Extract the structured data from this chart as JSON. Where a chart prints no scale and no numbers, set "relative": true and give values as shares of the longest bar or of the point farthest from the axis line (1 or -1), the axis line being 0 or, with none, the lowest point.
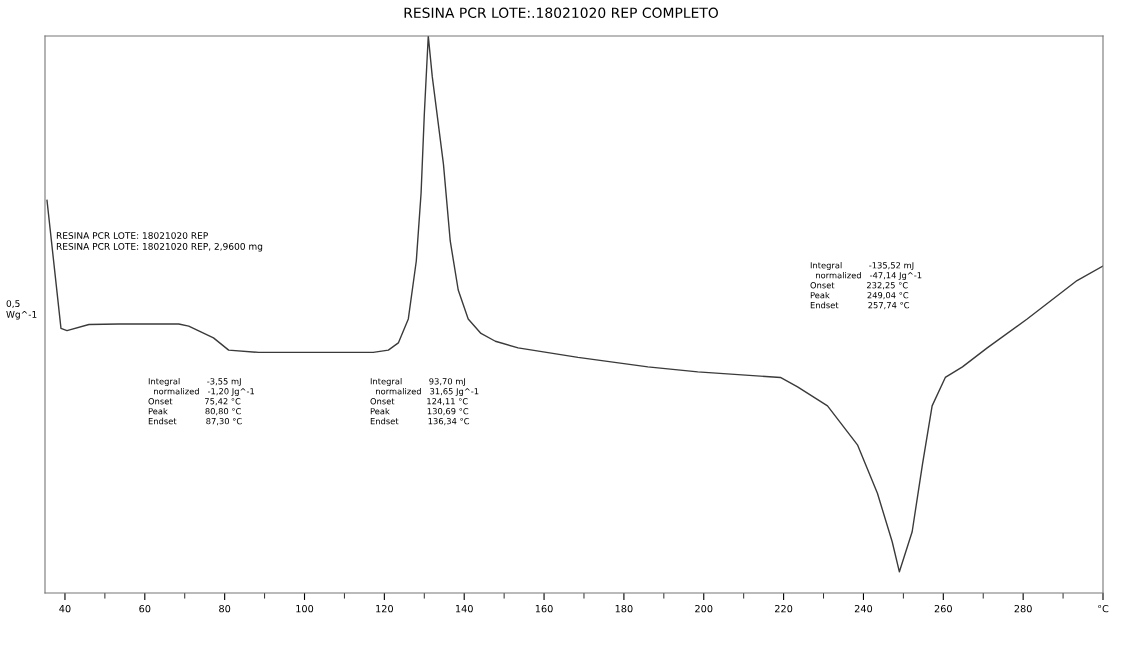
{
  "chart_data": {
    "type": "line",
    "title": "RESINA PCR LOTE:.18021020 REP COMPLETO",
    "relative": true,
    "grid": false,
    "legend": false,
    "x": [
      35.5,
      39,
      40.5,
      46,
      53.5,
      68.5,
      71,
      77.2,
      81,
      88.5,
      98.5,
      117.2,
      121,
      123.5,
      126,
      128,
      129.2,
      130,
      130.6,
      131,
      132,
      134.8,
      136.5,
      138.5,
      141,
      144.2,
      147.8,
      153.5,
      168.5,
      186,
      198.5,
      219.2,
      223.5,
      231,
      238.5,
      243.5,
      247.2,
      249,
      252.2,
      254.8,
      257.2,
      260.5,
      264.8,
      271,
      281,
      293.5,
      300
    ],
    "series": [
      {
        "color": "#3a3a3a",
        "values": [
          0.705,
          0.475,
          0.471,
          0.482,
          0.483,
          0.483,
          0.479,
          0.458,
          0.436,
          0.432,
          0.432,
          0.432,
          0.436,
          0.449,
          0.492,
          0.596,
          0.718,
          0.858,
          0.944,
          1,
          0.927,
          0.77,
          0.632,
          0.544,
          0.492,
          0.466,
          0.452,
          0.44,
          0.423,
          0.406,
          0.397,
          0.387,
          0.37,
          0.336,
          0.266,
          0.179,
          0.092,
          0.038,
          0.11,
          0.232,
          0.336,
          0.387,
          0.406,
          0.44,
          0.492,
          0.561,
          0.587
        ]
      }
    ],
    "xlim": [
      35,
      300
    ],
    "xticks": [
      40,
      {
        "value": 50,
        "label": null
      },
      60,
      {
        "value": 70,
        "label": null
      },
      80,
      {
        "value": 90,
        "label": null
      },
      100,
      {
        "value": 110,
        "label": null
      },
      120,
      {
        "value": 130,
        "label": null
      },
      140,
      {
        "value": 150,
        "label": null
      },
      160,
      {
        "value": 170,
        "label": null
      },
      180,
      {
        "value": 190,
        "label": null
      },
      200,
      {
        "value": 210,
        "label": null
      },
      220,
      {
        "value": 230,
        "label": null
      },
      240,
      {
        "value": 250,
        "label": null
      },
      260,
      {
        "value": 270,
        "label": null
      },
      280,
      {
        "value": 290,
        "label": null
      },
      {
        "value": 300,
        "label": "°C"
      }
    ],
    "annotations": [
      "RESINA PCR LOTE: 18021020 REP\nRESINA PCR LOTE: 18021020 REP, 2,9600 mg",
      "0,5\nWg^-1",
      "Integral          -3,55 mJ\n  normalized   -1,20 Jg^-1\nOnset            75,42 °C\nPeak              80,80 °C\nEndset           87,30 °C",
      "Integral          93,70 mJ\n  normalized   31,65 Jg^-1\nOnset            124,11 °C\nPeak              130,69 °C\nEndset           136,34 °C",
      "Integral          -135,52 mJ\n  normalized   -47,14 Jg^-1\nOnset            232,25 °C\nPeak              249,04 °C\nEndset           257,74 °C"
    ]
  }
}
